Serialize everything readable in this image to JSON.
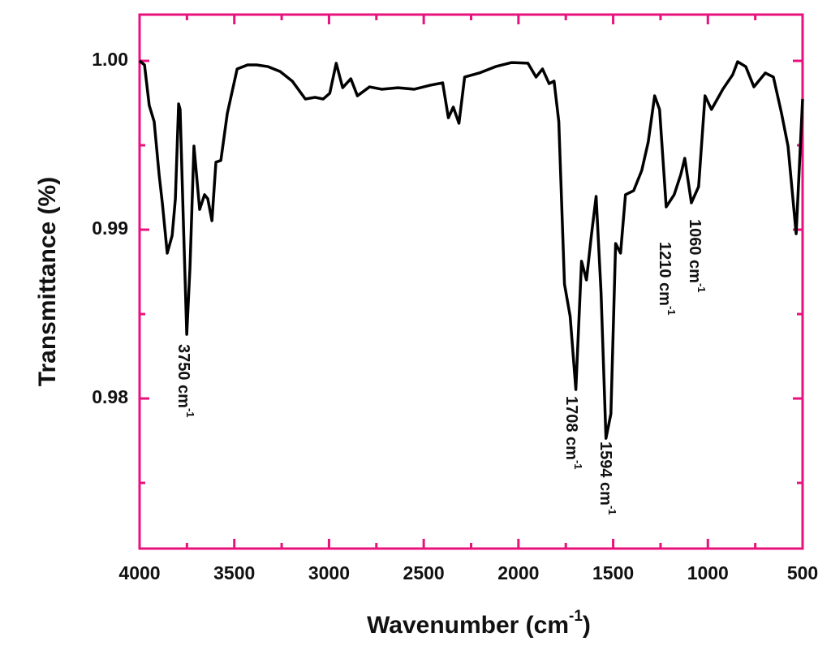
{
  "chart_data": {
    "type": "line",
    "xlabel": {
      "text": "Wavenumber (cm",
      "sup": "-1",
      "after": ")"
    },
    "ylabel": "Transmittance (%)",
    "x": [
      4000,
      3974,
      3949,
      3923,
      3897,
      3880,
      3854,
      3828,
      3811,
      3794,
      3786,
      3768,
      3751,
      3734,
      3713,
      3683,
      3657,
      3640,
      3618,
      3597,
      3571,
      3537,
      3485,
      3430,
      3382,
      3322,
      3258,
      3194,
      3125,
      3074,
      3031,
      2996,
      2962,
      2928,
      2885,
      2850,
      2786,
      2722,
      2636,
      2550,
      2464,
      2400,
      2370,
      2344,
      2314,
      2284,
      2207,
      2121,
      2036,
      1950,
      1907,
      1873,
      1838,
      1812,
      1787,
      1757,
      1727,
      1697,
      1667,
      1641,
      1615,
      1590,
      1564,
      1538,
      1512,
      1487,
      1461,
      1435,
      1392,
      1349,
      1315,
      1281,
      1255,
      1220,
      1178,
      1143,
      1122,
      1087,
      1049,
      1015,
      981,
      921,
      869,
      843,
      800,
      757,
      697,
      654,
      611,
      577,
      534,
      500
    ],
    "series": [
      {
        "name": "Transmittance",
        "color": "#000000",
        "values": [
          1.0,
          0.99976,
          0.99736,
          0.9964,
          0.99327,
          0.99159,
          0.98861,
          0.98966,
          0.99183,
          0.99745,
          0.99712,
          0.99014,
          0.9838,
          0.98774,
          0.99495,
          0.9912,
          0.99207,
          0.99183,
          0.99053,
          0.994,
          0.9941,
          0.99688,
          0.99952,
          0.99976,
          0.99976,
          0.99966,
          0.99937,
          0.9988,
          0.99774,
          0.99784,
          0.99774,
          0.99808,
          0.99986,
          0.99841,
          0.99894,
          0.99793,
          0.99846,
          0.99832,
          0.99841,
          0.99832,
          0.99856,
          0.9987,
          0.99663,
          0.99726,
          0.9963,
          0.99904,
          0.99928,
          0.99966,
          0.9999,
          0.99986,
          0.99904,
          0.99952,
          0.99865,
          0.9988,
          0.9964,
          0.98678,
          0.98486,
          0.98053,
          0.98813,
          0.98702,
          0.98966,
          0.99197,
          0.9863,
          0.97764,
          0.97909,
          0.98918,
          0.98861,
          0.99207,
          0.99231,
          0.99351,
          0.99519,
          0.99793,
          0.99712,
          0.99135,
          0.99207,
          0.99327,
          0.99423,
          0.99159,
          0.99255,
          0.99793,
          0.99712,
          0.99832,
          0.99918,
          0.99995,
          0.99966,
          0.99846,
          0.99928,
          0.99904,
          0.99688,
          0.99495,
          0.98976,
          0.99774
        ]
      }
    ],
    "xlim": [
      4000,
      500
    ],
    "ylim": [
      0.97111,
      1.00274
    ],
    "xticks": [
      4000,
      3500,
      3000,
      2500,
      2000,
      1500,
      1000,
      500
    ],
    "xminorticks": [
      3750,
      3250,
      2750,
      2250,
      1750,
      1250,
      750
    ],
    "yticks": [
      0.98,
      0.99,
      {
        "value": 1,
        "label": "1.00"
      }
    ],
    "yminorticks": [
      0.975,
      0.985,
      0.995
    ],
    "frame_color": "#e8127c",
    "grid": false,
    "annotations": [
      {
        "text": "3750 cm",
        "sup": "-1"
      },
      {
        "text": "1708 cm",
        "sup": "-1"
      },
      {
        "text": "1594 cm",
        "sup": "-1"
      },
      {
        "text": "1210 cm",
        "sup": "-1"
      },
      {
        "text": "1060 cm",
        "sup": "-1"
      }
    ]
  }
}
